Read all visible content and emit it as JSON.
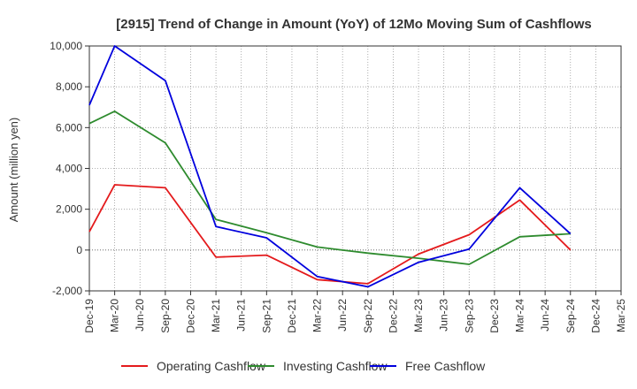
{
  "chart_data": {
    "type": "line",
    "title": "[2915]  Trend of Change in Amount (YoY) of 12Mo Moving Sum of Cashflows",
    "xlabel": "",
    "ylabel": "Amount (million yen)",
    "ylim": [
      -2000,
      10000
    ],
    "yticks": [
      -2000,
      0,
      2000,
      4000,
      6000,
      8000,
      10000
    ],
    "ytick_labels": [
      "-2,000",
      "0",
      "2,000",
      "4,000",
      "6,000",
      "8,000",
      "10,000"
    ],
    "categories": [
      "Dec-19",
      "Mar-20",
      "Jun-20",
      "Sep-20",
      "Dec-20",
      "Mar-21",
      "Jun-21",
      "Sep-21",
      "Dec-21",
      "Mar-22",
      "Jun-22",
      "Sep-22",
      "Dec-22",
      "Mar-23",
      "Jun-23",
      "Sep-23",
      "Dec-23",
      "Mar-24",
      "Jun-24",
      "Sep-24",
      "Dec-24",
      "Mar-25"
    ],
    "grid": true,
    "legend_position": "bottom",
    "series": [
      {
        "name": "Operating Cashflow",
        "color": "#e41a1c",
        "values": [
          900,
          3200,
          null,
          3050,
          null,
          -350,
          null,
          -250,
          null,
          -1450,
          null,
          -1650,
          null,
          -200,
          null,
          750,
          null,
          2450,
          null,
          0,
          null,
          null
        ]
      },
      {
        "name": "Investing Cashflow",
        "color": "#2e8b2e",
        "values": [
          6200,
          6800,
          null,
          5250,
          null,
          1500,
          null,
          850,
          null,
          150,
          null,
          -150,
          null,
          -400,
          null,
          -700,
          null,
          650,
          null,
          800,
          null,
          null
        ]
      },
      {
        "name": "Free Cashflow",
        "color": "#0000dd",
        "values": [
          7100,
          10000,
          null,
          8300,
          null,
          1150,
          null,
          600,
          null,
          -1300,
          null,
          -1800,
          null,
          -600,
          null,
          50,
          null,
          3050,
          null,
          800,
          null,
          null
        ]
      }
    ]
  }
}
